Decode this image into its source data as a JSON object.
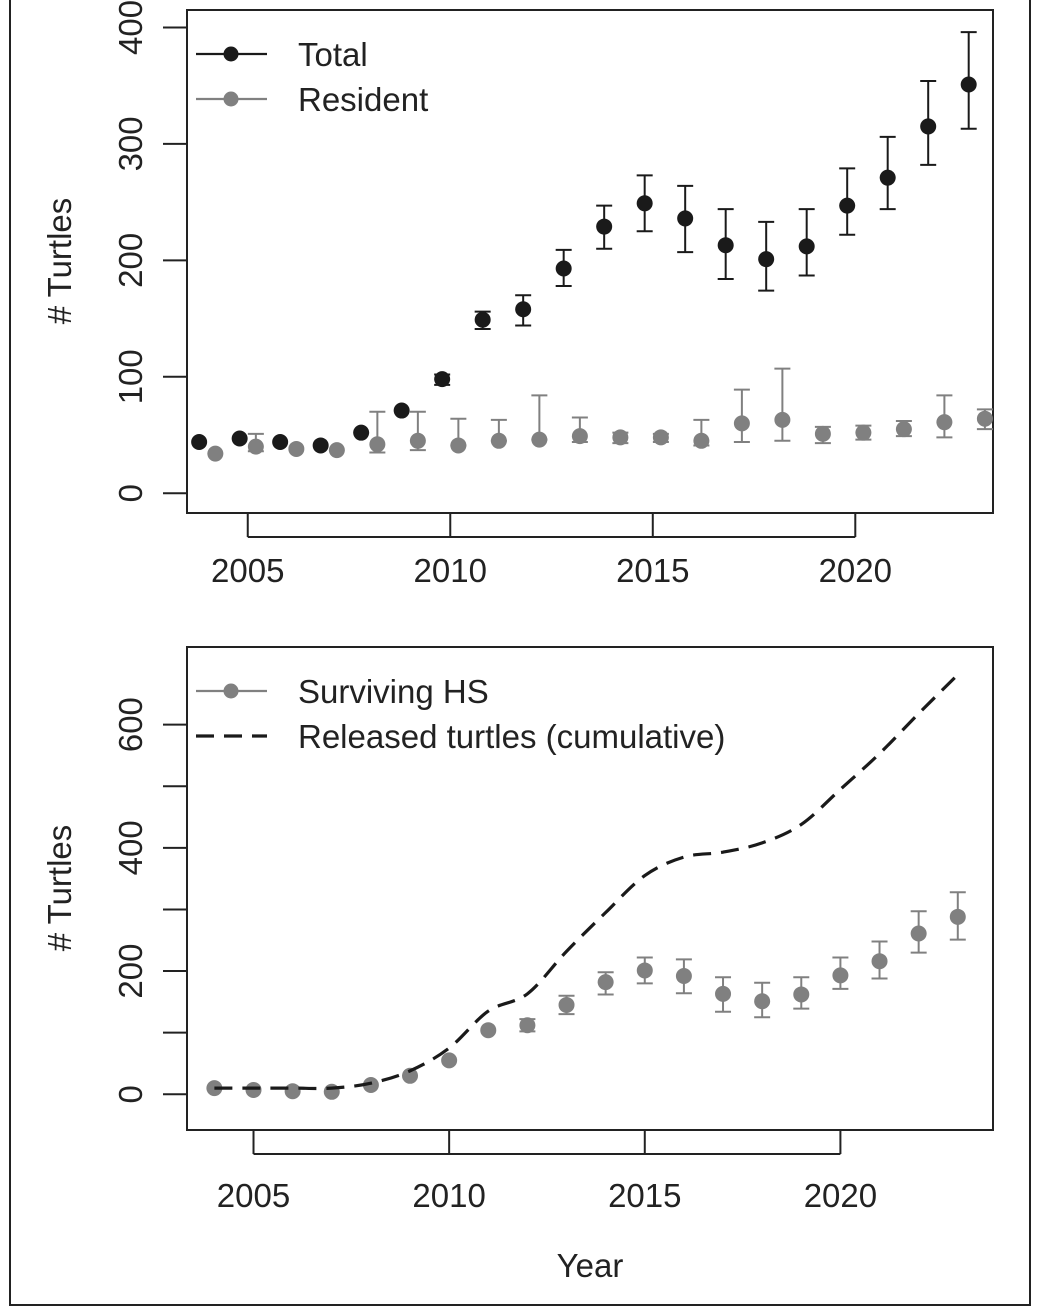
{
  "chart_data": [
    {
      "type": "scatter",
      "ylabel": "# Turtles",
      "xlabel": "",
      "xlim": [
        2003.5,
        2023.4
      ],
      "ylim": [
        -17,
        415
      ],
      "x_ticks": [
        2005,
        2010,
        2015,
        2020
      ],
      "y_ticks": [
        0,
        100,
        200,
        300,
        400
      ],
      "legend_position": "top-left",
      "series": [
        {
          "name": "Total",
          "color": "#1a1a1a",
          "style": "points-with-error-bars",
          "points": [
            {
              "x": 2003.8,
              "y": 44,
              "lo": 44,
              "hi": 44
            },
            {
              "x": 2004.8,
              "y": 47,
              "lo": 47,
              "hi": 47
            },
            {
              "x": 2005.8,
              "y": 44,
              "lo": 44,
              "hi": 44
            },
            {
              "x": 2006.8,
              "y": 41,
              "lo": 41,
              "hi": 41
            },
            {
              "x": 2007.8,
              "y": 52,
              "lo": 52,
              "hi": 52
            },
            {
              "x": 2008.8,
              "y": 71,
              "lo": 71,
              "hi": 71
            },
            {
              "x": 2009.8,
              "y": 98,
              "lo": 93,
              "hi": 102
            },
            {
              "x": 2010.8,
              "y": 149,
              "lo": 141,
              "hi": 156
            },
            {
              "x": 2011.8,
              "y": 158,
              "lo": 144,
              "hi": 170
            },
            {
              "x": 2012.8,
              "y": 193,
              "lo": 178,
              "hi": 209
            },
            {
              "x": 2013.8,
              "y": 229,
              "lo": 210,
              "hi": 247
            },
            {
              "x": 2014.8,
              "y": 249,
              "lo": 225,
              "hi": 273
            },
            {
              "x": 2015.8,
              "y": 236,
              "lo": 207,
              "hi": 264
            },
            {
              "x": 2016.8,
              "y": 213,
              "lo": 184,
              "hi": 244
            },
            {
              "x": 2017.8,
              "y": 201,
              "lo": 174,
              "hi": 233
            },
            {
              "x": 2018.8,
              "y": 212,
              "lo": 187,
              "hi": 244
            },
            {
              "x": 2019.8,
              "y": 247,
              "lo": 222,
              "hi": 279
            },
            {
              "x": 2020.8,
              "y": 271,
              "lo": 244,
              "hi": 306
            },
            {
              "x": 2021.8,
              "y": 315,
              "lo": 282,
              "hi": 354
            },
            {
              "x": 2022.8,
              "y": 351,
              "lo": 313,
              "hi": 396
            }
          ]
        },
        {
          "name": "Resident",
          "color": "#808080",
          "style": "points-with-error-bars",
          "points": [
            {
              "x": 2004.2,
              "y": 34,
              "lo": 34,
              "hi": 34
            },
            {
              "x": 2005.2,
              "y": 40,
              "lo": 36,
              "hi": 51
            },
            {
              "x": 2006.2,
              "y": 38,
              "lo": 38,
              "hi": 38
            },
            {
              "x": 2007.2,
              "y": 37,
              "lo": 37,
              "hi": 37
            },
            {
              "x": 2008.2,
              "y": 42,
              "lo": 35,
              "hi": 70
            },
            {
              "x": 2009.2,
              "y": 45,
              "lo": 37,
              "hi": 70
            },
            {
              "x": 2010.2,
              "y": 41,
              "lo": 41,
              "hi": 64
            },
            {
              "x": 2011.2,
              "y": 45,
              "lo": 45,
              "hi": 63
            },
            {
              "x": 2012.2,
              "y": 46,
              "lo": 46,
              "hi": 84
            },
            {
              "x": 2013.2,
              "y": 49,
              "lo": 44,
              "hi": 65
            },
            {
              "x": 2014.2,
              "y": 48,
              "lo": 43,
              "hi": 52
            },
            {
              "x": 2015.2,
              "y": 48,
              "lo": 44,
              "hi": 51
            },
            {
              "x": 2016.2,
              "y": 45,
              "lo": 41,
              "hi": 63
            },
            {
              "x": 2017.2,
              "y": 60,
              "lo": 44,
              "hi": 89
            },
            {
              "x": 2018.2,
              "y": 63,
              "lo": 45,
              "hi": 107
            },
            {
              "x": 2019.2,
              "y": 51,
              "lo": 43,
              "hi": 57
            },
            {
              "x": 2020.2,
              "y": 52,
              "lo": 46,
              "hi": 58
            },
            {
              "x": 2021.2,
              "y": 55,
              "lo": 49,
              "hi": 62
            },
            {
              "x": 2022.2,
              "y": 61,
              "lo": 48,
              "hi": 84
            },
            {
              "x": 2023.2,
              "y": 64,
              "lo": 55,
              "hi": 72
            }
          ]
        }
      ]
    },
    {
      "type": "line",
      "ylabel": "# Turtles",
      "xlabel": "Year",
      "xlim": [
        2003.3,
        2023.9
      ],
      "ylim": [
        -58,
        726
      ],
      "x_ticks": [
        2005,
        2010,
        2015,
        2020
      ],
      "y_ticks": [
        0,
        200,
        400,
        600
      ],
      "y_minor_ticks": [
        100,
        300,
        500
      ],
      "legend_position": "top-left",
      "series": [
        {
          "name": "Surviving HS",
          "color": "#808080",
          "style": "points-with-error-bars",
          "points": [
            {
              "x": 2004,
              "y": 10,
              "lo": 10,
              "hi": 10
            },
            {
              "x": 2005,
              "y": 7,
              "lo": 7,
              "hi": 7
            },
            {
              "x": 2006,
              "y": 5,
              "lo": 5,
              "hi": 5
            },
            {
              "x": 2007,
              "y": 4,
              "lo": 4,
              "hi": 4
            },
            {
              "x": 2008,
              "y": 15,
              "lo": 15,
              "hi": 15
            },
            {
              "x": 2009,
              "y": 30,
              "lo": 30,
              "hi": 30
            },
            {
              "x": 2010,
              "y": 55,
              "lo": 55,
              "hi": 55
            },
            {
              "x": 2011,
              "y": 104,
              "lo": 104,
              "hi": 104
            },
            {
              "x": 2012,
              "y": 112,
              "lo": 102,
              "hi": 122
            },
            {
              "x": 2013,
              "y": 145,
              "lo": 130,
              "hi": 160
            },
            {
              "x": 2014,
              "y": 182,
              "lo": 162,
              "hi": 198
            },
            {
              "x": 2015,
              "y": 201,
              "lo": 180,
              "hi": 222
            },
            {
              "x": 2016,
              "y": 192,
              "lo": 164,
              "hi": 219
            },
            {
              "x": 2017,
              "y": 163,
              "lo": 134,
              "hi": 190
            },
            {
              "x": 2018,
              "y": 151,
              "lo": 125,
              "hi": 181
            },
            {
              "x": 2019,
              "y": 162,
              "lo": 139,
              "hi": 190
            },
            {
              "x": 2020,
              "y": 193,
              "lo": 171,
              "hi": 222
            },
            {
              "x": 2021,
              "y": 216,
              "lo": 188,
              "hi": 248
            },
            {
              "x": 2022,
              "y": 261,
              "lo": 230,
              "hi": 297
            },
            {
              "x": 2023,
              "y": 288,
              "lo": 251,
              "hi": 328
            }
          ]
        },
        {
          "name": "Released turtles (cumulative)",
          "color": "#1a1a1a",
          "style": "dashed-line",
          "points": [
            {
              "x": 2004,
              "y": 10
            },
            {
              "x": 2005,
              "y": 10
            },
            {
              "x": 2006,
              "y": 10
            },
            {
              "x": 2007,
              "y": 10
            },
            {
              "x": 2008,
              "y": 18
            },
            {
              "x": 2009,
              "y": 38
            },
            {
              "x": 2010,
              "y": 75
            },
            {
              "x": 2011,
              "y": 135
            },
            {
              "x": 2012,
              "y": 163
            },
            {
              "x": 2013,
              "y": 232
            },
            {
              "x": 2014,
              "y": 295
            },
            {
              "x": 2015,
              "y": 355
            },
            {
              "x": 2016,
              "y": 385
            },
            {
              "x": 2017,
              "y": 393
            },
            {
              "x": 2018,
              "y": 408
            },
            {
              "x": 2019,
              "y": 438
            },
            {
              "x": 2020,
              "y": 495
            },
            {
              "x": 2021,
              "y": 553
            },
            {
              "x": 2022,
              "y": 618
            },
            {
              "x": 2023,
              "y": 681
            }
          ]
        }
      ]
    }
  ]
}
